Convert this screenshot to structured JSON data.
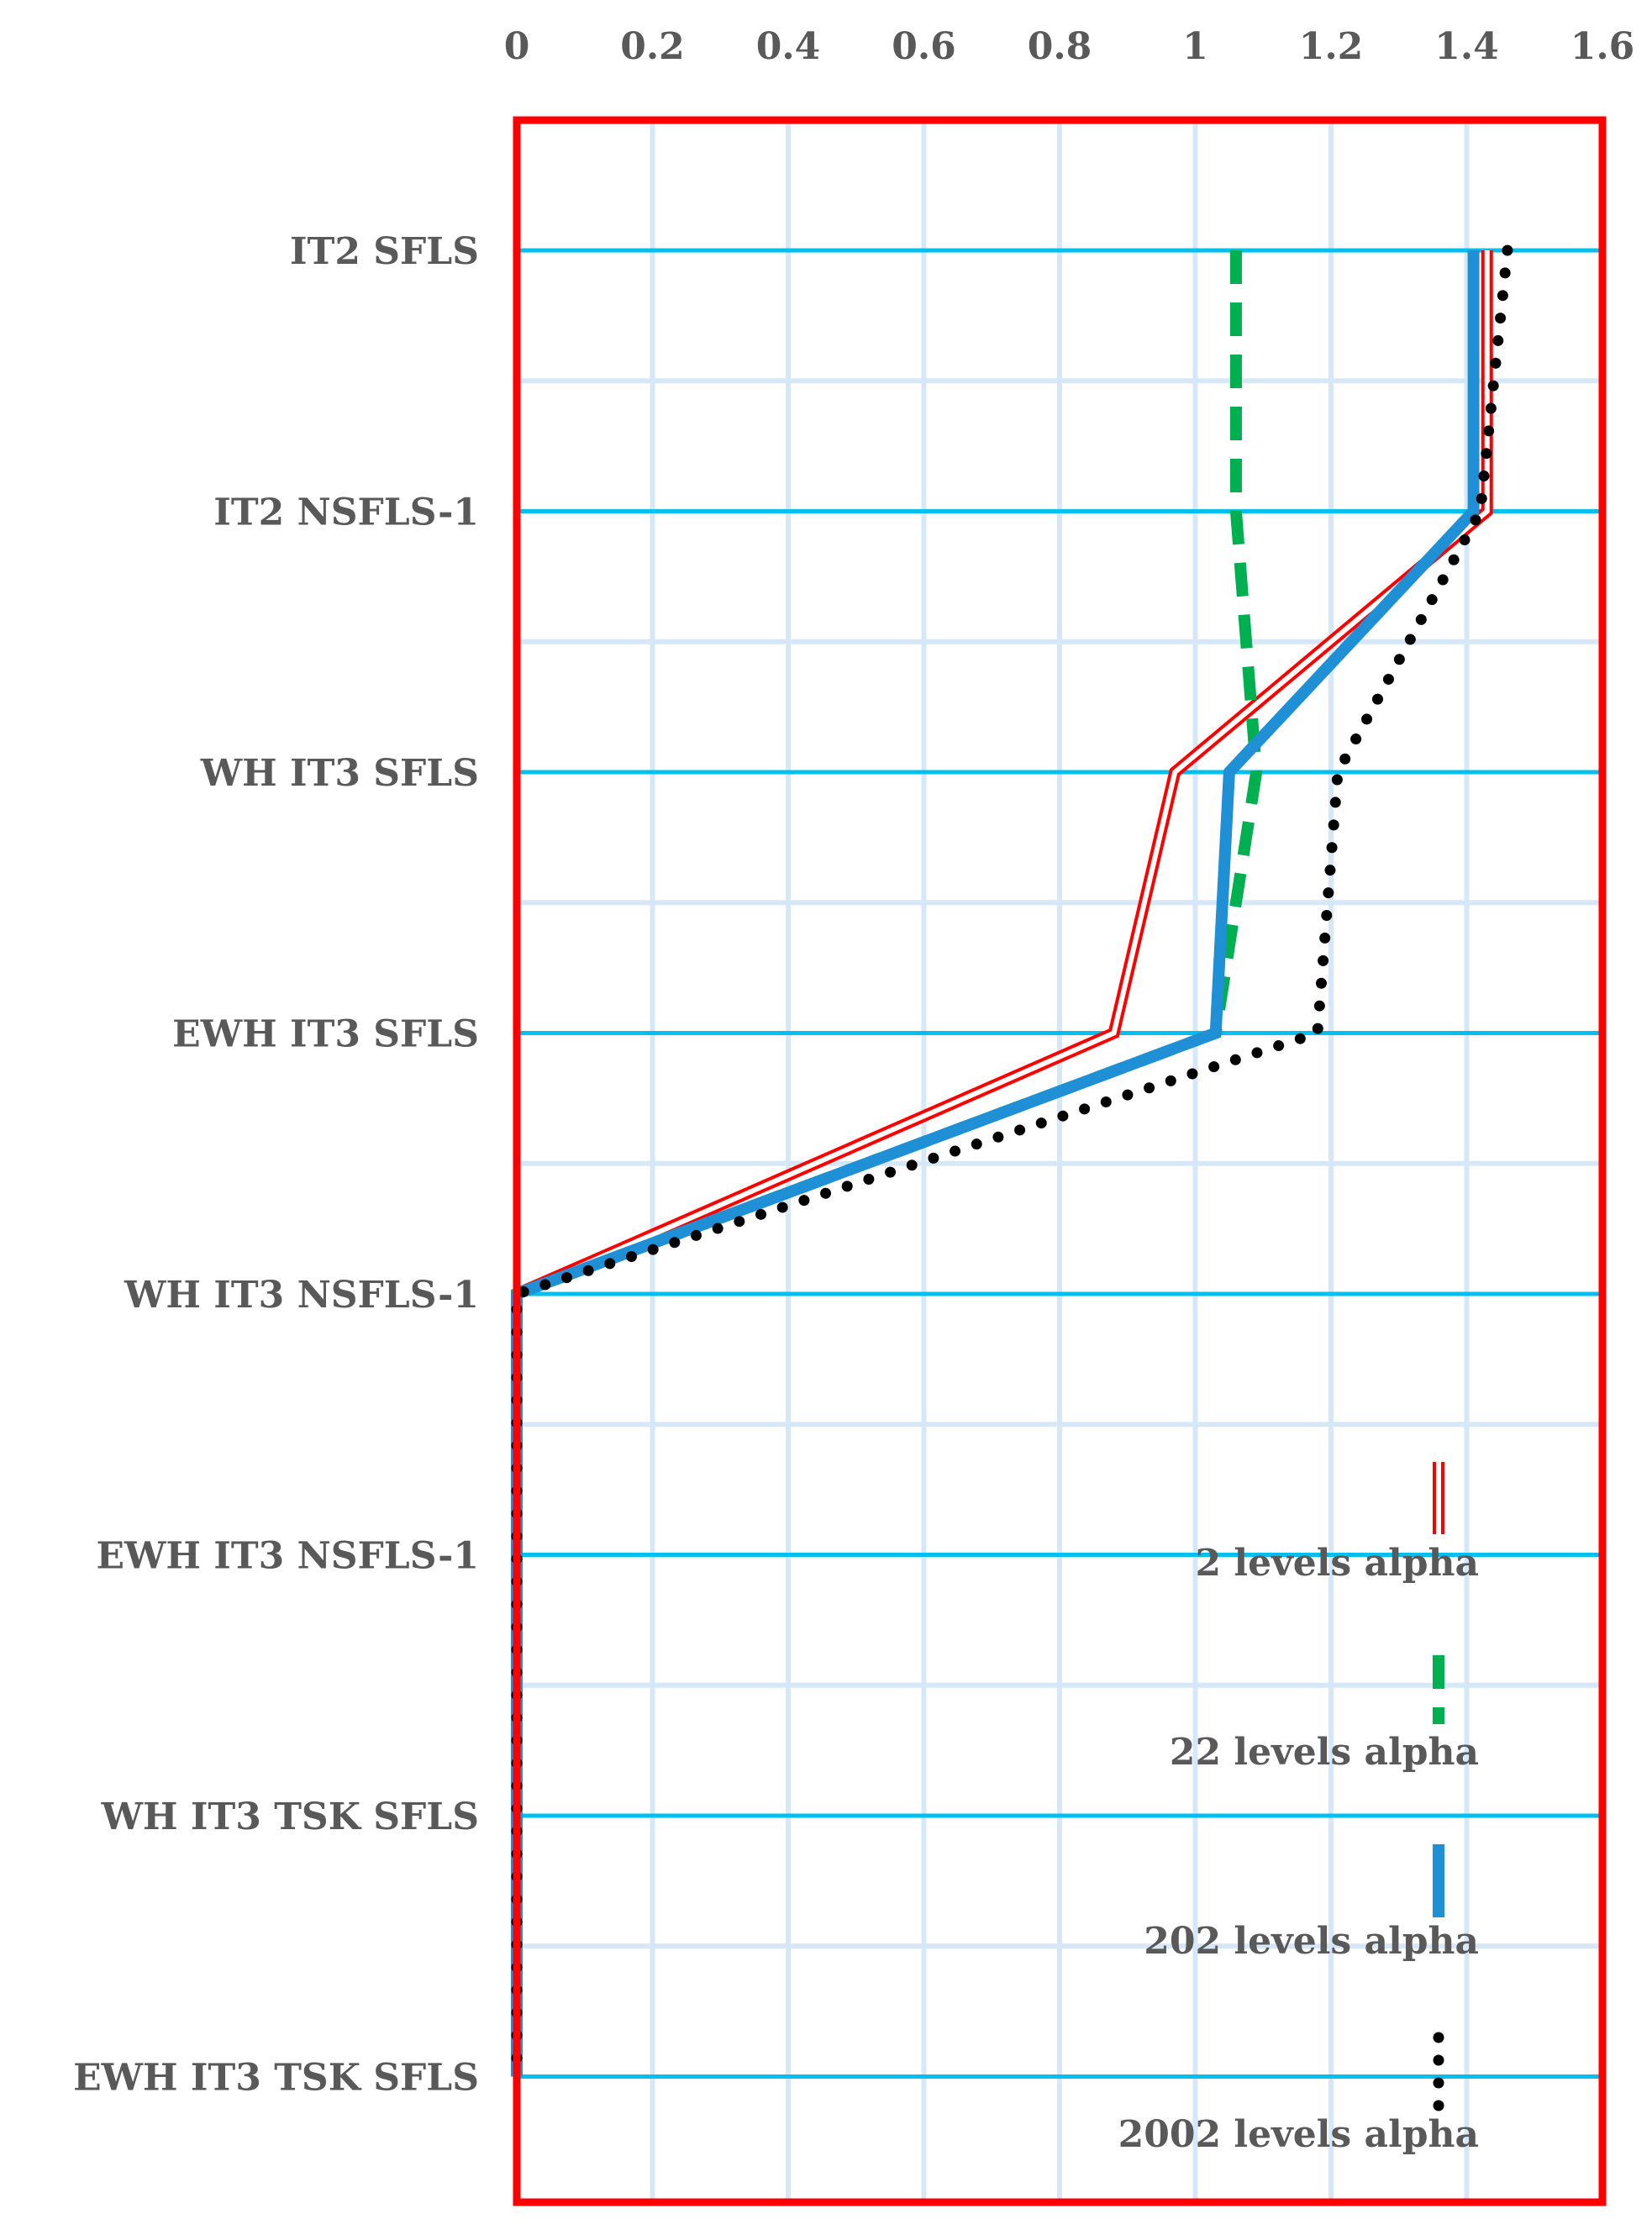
{
  "chart_data": {
    "type": "line",
    "orientation": "horizontal",
    "categories": [
      "IT2 SFLS",
      "IT2 NSFLS-1",
      "WH IT3 SFLS",
      "EWH IT3 SFLS",
      "WH IT3 NSFLS-1",
      "EWH IT3 NSFLS-1",
      "WH IT3 TSK SFLS",
      "EWH IT3 TSK SFLS"
    ],
    "xaxis_position": "top",
    "xlim": [
      0,
      1.6
    ],
    "xticks": [
      "0",
      "0.2",
      "0.4",
      "0.6",
      "0.8",
      "1",
      "1.2",
      "1.4",
      "1.6"
    ],
    "grid": true,
    "legend_position": "bottom-right, inside plot",
    "series": [
      {
        "name": "2 levels alpha",
        "style": "double",
        "color": "#ff0000",
        "values": [
          1.43,
          1.43,
          0.97,
          0.88,
          0,
          0,
          0,
          0
        ]
      },
      {
        "name": "22 levels alpha",
        "style": "dashed",
        "color": "#00b050",
        "values": [
          1.06,
          1.06,
          1.09,
          1.03,
          0,
          0,
          0,
          0
        ]
      },
      {
        "name": "202 levels alpha",
        "style": "solid",
        "color": "#1f8fd6",
        "values": [
          1.41,
          1.41,
          1.05,
          1.03,
          0,
          0,
          0,
          0
        ]
      },
      {
        "name": "2002 levels alpha",
        "style": "dotted",
        "color": "#000000",
        "values": [
          1.46,
          1.42,
          1.21,
          1.18,
          0,
          0,
          0,
          0
        ]
      }
    ],
    "colors": {
      "frame": "#ff0000",
      "category_line": "#00c0f0",
      "grid": "#d6e8f7",
      "text": "#595959"
    }
  }
}
